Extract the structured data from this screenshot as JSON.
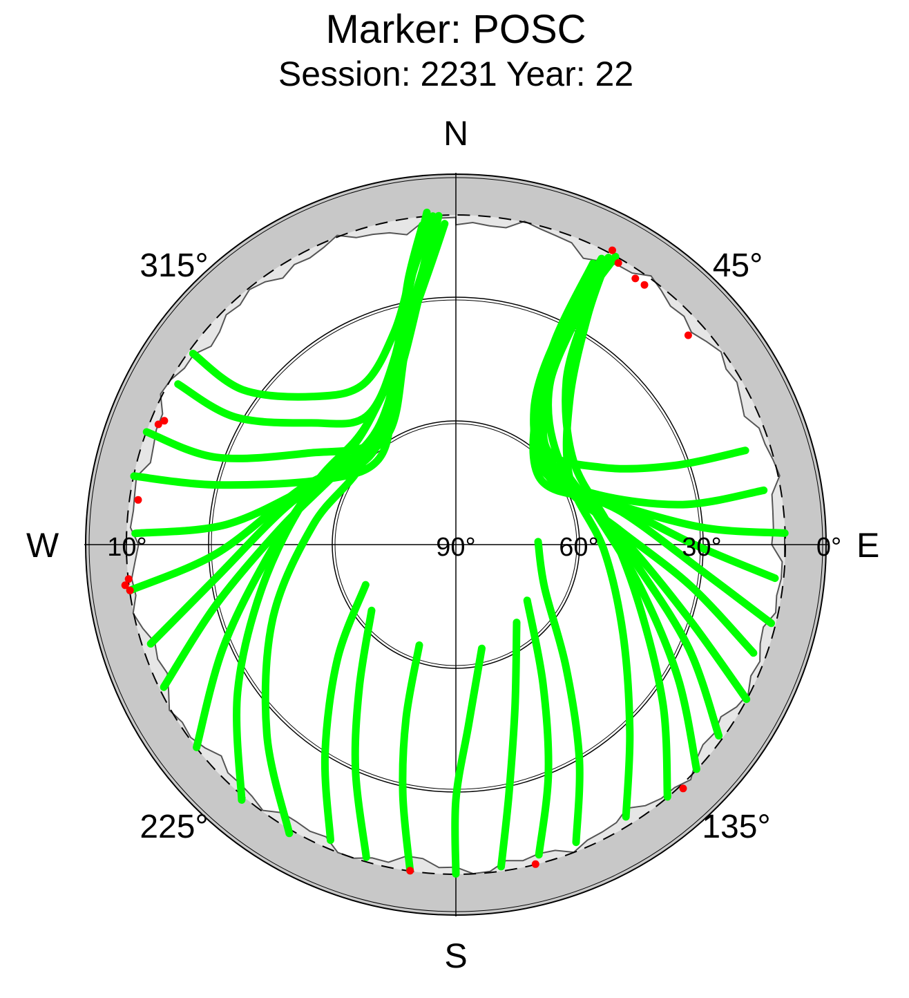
{
  "chart_data": {
    "type": "scatter",
    "projection": "polar-skyplot",
    "title": "Marker: POSC",
    "subtitle": "Session: 2231 Year: 22",
    "directions": {
      "north": "N",
      "east": "E",
      "south": "S",
      "west": "W"
    },
    "azimuth_labels": [
      {
        "azimuth": 45,
        "label": "45°"
      },
      {
        "azimuth": 135,
        "label": "135°"
      },
      {
        "azimuth": 225,
        "label": "225°"
      },
      {
        "azimuth": 315,
        "label": "315°"
      }
    ],
    "elevation_labels": [
      {
        "elevation": 90,
        "label": "90°"
      },
      {
        "elevation": 60,
        "label": "60°"
      },
      {
        "elevation": 30,
        "label": "30°"
      },
      {
        "elevation": 10,
        "label": "10°",
        "side": "west"
      },
      {
        "elevation": 0,
        "label": "0°"
      }
    ],
    "elevation_circles": [
      30,
      60
    ],
    "cutoff_elevation": 10,
    "radial_range": [
      0,
      90
    ],
    "colors": {
      "accepted": "#00ff00",
      "rejected": "#ff0000",
      "outer_band": "#c8c8c8",
      "obstruction": "#e6e6e6",
      "axes": "#000000"
    },
    "tracks": [
      {
        "points": [
          [
            9,
            210
          ],
          [
            25,
            225
          ],
          [
            42,
            248
          ],
          [
            55,
            278
          ],
          [
            60,
            310
          ],
          [
            48,
            340
          ],
          [
            28,
            352
          ],
          [
            10,
            357
          ]
        ]
      },
      {
        "points": [
          [
            9,
            220
          ],
          [
            26,
            236
          ],
          [
            42,
            258
          ],
          [
            52,
            288
          ],
          [
            55,
            318
          ],
          [
            43,
            342
          ],
          [
            24,
            354
          ],
          [
            12,
            358
          ]
        ]
      },
      {
        "points": [
          [
            10,
            232
          ],
          [
            28,
            246
          ],
          [
            44,
            266
          ],
          [
            53,
            295
          ],
          [
            54,
            322
          ],
          [
            40,
            345
          ],
          [
            20,
            354
          ]
        ]
      },
      {
        "points": [
          [
            11,
            244
          ],
          [
            30,
            256
          ],
          [
            47,
            275
          ],
          [
            56,
            300
          ],
          [
            56,
            326
          ],
          [
            42,
            344
          ],
          [
            18,
            355
          ]
        ]
      },
      {
        "points": [
          [
            12,
            252
          ],
          [
            31,
            262
          ],
          [
            48,
            283
          ],
          [
            57,
            305
          ],
          [
            58,
            330
          ],
          [
            40,
            346
          ],
          [
            16,
            355
          ]
        ]
      },
      {
        "points": [
          [
            10,
            262
          ],
          [
            32,
            268
          ],
          [
            50,
            290
          ],
          [
            58,
            310
          ],
          [
            54,
            332
          ],
          [
            36,
            347
          ],
          [
            14,
            356
          ]
        ]
      },
      {
        "points": [
          [
            12,
            272
          ],
          [
            34,
            275
          ],
          [
            52,
            292
          ],
          [
            60,
            315
          ],
          [
            52,
            335
          ],
          [
            30,
            348
          ],
          [
            12,
            355
          ]
        ]
      },
      {
        "points": [
          [
            10,
            282
          ],
          [
            30,
            284
          ],
          [
            54,
            296
          ],
          [
            62,
            318
          ],
          [
            50,
            338
          ],
          [
            28,
            349
          ],
          [
            10,
            356
          ]
        ]
      },
      {
        "points": [
          [
            10,
            290
          ],
          [
            28,
            290
          ],
          [
            48,
            302
          ],
          [
            58,
            322
          ],
          [
            46,
            340
          ],
          [
            26,
            350
          ],
          [
            9,
            355
          ]
        ]
      },
      {
        "points": [
          [
            12,
            300
          ],
          [
            28,
            300
          ],
          [
            44,
            310
          ],
          [
            52,
            325
          ],
          [
            42,
            342
          ],
          [
            24,
            350
          ],
          [
            12,
            354
          ]
        ]
      },
      {
        "points": [
          [
            11,
            306
          ],
          [
            26,
            306
          ],
          [
            40,
            316
          ],
          [
            45,
            330
          ],
          [
            36,
            344
          ],
          [
            22,
            351
          ]
        ]
      },
      {
        "points": [
          [
            12,
            148
          ],
          [
            28,
            137
          ],
          [
            44,
            118
          ],
          [
            54,
            92
          ],
          [
            58,
            60
          ],
          [
            45,
            38
          ],
          [
            26,
            30
          ],
          [
            12,
            28
          ]
        ]
      },
      {
        "points": [
          [
            10,
            140
          ],
          [
            26,
            128
          ],
          [
            42,
            110
          ],
          [
            52,
            85
          ],
          [
            55,
            55
          ],
          [
            42,
            34
          ],
          [
            24,
            29
          ]
        ]
      },
      {
        "points": [
          [
            10,
            133
          ],
          [
            27,
            121
          ],
          [
            44,
            103
          ],
          [
            55,
            78
          ],
          [
            57,
            48
          ],
          [
            44,
            30
          ],
          [
            22,
            28
          ]
        ]
      },
      {
        "points": [
          [
            11,
            126
          ],
          [
            28,
            114
          ],
          [
            46,
            96
          ],
          [
            56,
            72
          ],
          [
            58,
            42
          ],
          [
            40,
            28
          ],
          [
            20,
            27
          ]
        ]
      },
      {
        "points": [
          [
            10,
            118
          ],
          [
            30,
            108
          ],
          [
            48,
            90
          ],
          [
            58,
            66
          ],
          [
            58,
            38
          ],
          [
            38,
            27
          ],
          [
            16,
            26
          ]
        ]
      },
      {
        "points": [
          [
            13,
            110
          ],
          [
            32,
            100
          ],
          [
            50,
            85
          ],
          [
            60,
            62
          ],
          [
            56,
            34
          ],
          [
            36,
            26
          ],
          [
            14,
            26
          ]
        ]
      },
      {
        "points": [
          [
            11,
            104
          ],
          [
            30,
            96
          ],
          [
            48,
            80
          ],
          [
            60,
            58
          ],
          [
            54,
            32
          ],
          [
            34,
            26
          ],
          [
            12,
            27
          ]
        ]
      },
      {
        "points": [
          [
            12,
            96
          ],
          [
            32,
            90
          ],
          [
            50,
            76
          ],
          [
            62,
            55
          ],
          [
            52,
            30
          ],
          [
            32,
            26
          ],
          [
            11,
            28
          ]
        ]
      },
      {
        "points": [
          [
            10,
            88
          ],
          [
            30,
            86
          ],
          [
            52,
            74
          ],
          [
            64,
            52
          ],
          [
            50,
            30
          ],
          [
            30,
            27
          ],
          [
            10,
            29
          ]
        ]
      },
      {
        "points": [
          [
            14,
            80
          ],
          [
            34,
            80
          ],
          [
            54,
            70
          ],
          [
            62,
            48
          ],
          [
            48,
            30
          ],
          [
            28,
            28
          ]
        ]
      },
      {
        "points": [
          [
            16,
            72
          ],
          [
            34,
            70
          ],
          [
            50,
            62
          ],
          [
            58,
            44
          ],
          [
            44,
            30
          ],
          [
            26,
            28
          ]
        ]
      },
      {
        "points": [
          [
            12,
            158
          ],
          [
            30,
            150
          ],
          [
            50,
            138
          ],
          [
            66,
            116
          ],
          [
            70,
            88
          ]
        ]
      },
      {
        "points": [
          [
            12,
            165
          ],
          [
            30,
            158
          ],
          [
            50,
            148
          ],
          [
            68,
            128
          ]
        ]
      },
      {
        "points": [
          [
            11,
            172
          ],
          [
            28,
            168
          ],
          [
            48,
            160
          ],
          [
            66,
            142
          ]
        ]
      },
      {
        "points": [
          [
            10,
            180
          ],
          [
            28,
            180
          ],
          [
            46,
            176
          ],
          [
            64,
            166
          ]
        ]
      },
      {
        "points": [
          [
            10,
            188
          ],
          [
            28,
            192
          ],
          [
            46,
            196
          ],
          [
            64,
            200
          ]
        ]
      },
      {
        "points": [
          [
            11,
            196
          ],
          [
            30,
            204
          ],
          [
            48,
            214
          ],
          [
            64,
            232
          ]
        ]
      },
      {
        "points": [
          [
            12,
            203
          ],
          [
            30,
            212
          ],
          [
            50,
            226
          ],
          [
            66,
            246
          ]
        ]
      }
    ],
    "rejected_points": [
      {
        "el": 9,
        "az": 28
      },
      {
        "el": 11,
        "az": 30
      },
      {
        "el": 12,
        "az": 34
      },
      {
        "el": 12,
        "az": 36
      },
      {
        "el": 14,
        "az": 48
      },
      {
        "el": 9,
        "az": 137
      },
      {
        "el": 10,
        "az": 166
      },
      {
        "el": 10,
        "az": 188
      },
      {
        "el": 12,
        "az": 278
      },
      {
        "el": 9,
        "az": 263
      },
      {
        "el": 10,
        "az": 262
      },
      {
        "el": 10,
        "az": 264
      },
      {
        "el": 12,
        "az": 292
      },
      {
        "el": 13,
        "az": 293
      }
    ]
  }
}
